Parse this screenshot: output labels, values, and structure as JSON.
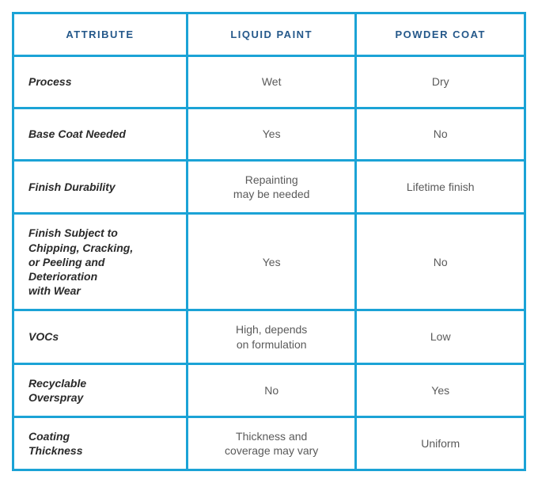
{
  "table": {
    "border_color": "#1ba3d6",
    "cell_bg": "#ffffff",
    "header_text_color": "#24588a",
    "attr_text_color": "#2a2a2a",
    "value_text_color": "#5a5a5a",
    "headers": {
      "attribute": "ATTRIBUTE",
      "liquid_paint": "LIQUID PAINT",
      "powder_coat": "POWDER COAT"
    },
    "rows": [
      {
        "attribute": "Process",
        "liquid_paint": "Wet",
        "powder_coat": "Dry"
      },
      {
        "attribute": "Base Coat Needed",
        "liquid_paint": "Yes",
        "powder_coat": "No"
      },
      {
        "attribute": "Finish Durability",
        "liquid_paint": "Repainting\nmay be needed",
        "powder_coat": "Lifetime finish"
      },
      {
        "attribute": "Finish Subject to\nChipping, Cracking,\nor Peeling and\nDeterioration\nwith Wear",
        "liquid_paint": "Yes",
        "powder_coat": "No"
      },
      {
        "attribute": "VOCs",
        "liquid_paint": "High, depends\non formulation",
        "powder_coat": "Low"
      },
      {
        "attribute": "Recyclable\nOverspray",
        "liquid_paint": "No",
        "powder_coat": "Yes"
      },
      {
        "attribute": "Coating\nThickness",
        "liquid_paint": "Thickness and\ncoverage may vary",
        "powder_coat": "Uniform"
      }
    ]
  }
}
